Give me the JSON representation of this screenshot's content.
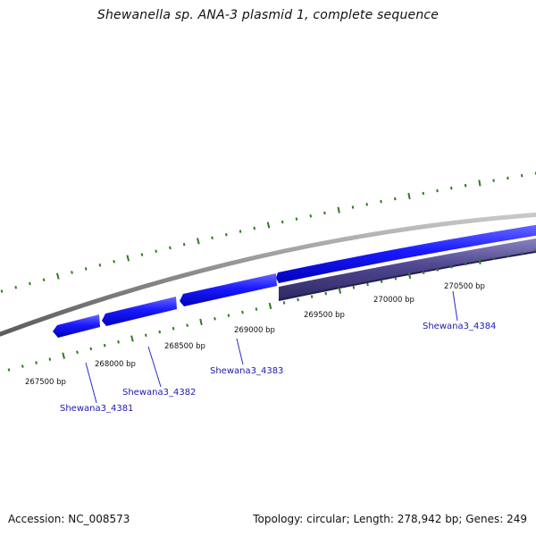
{
  "title": "Shewanella sp. ANA-3 plasmid 1, complete sequence",
  "footer": {
    "accession_label": "Accession:",
    "accession": "NC_008573",
    "topology_label": "Topology:",
    "topology": "circular",
    "length_label": "Length:",
    "length": "278,942 bp",
    "genes_label": "Genes:",
    "genes": "249"
  },
  "colors": {
    "backbone": "#8a8a8a",
    "gene_forward": "#1a1aff",
    "gene_reverse": "#4f478f",
    "tick": "#2e7d1f",
    "gene_label": "#1a1ab0",
    "text": "#111111"
  },
  "position_labels": [
    "267500 bp",
    "268000 bp",
    "268500 bp",
    "269000 bp",
    "269500 bp",
    "270000 bp",
    "270500 bp"
  ],
  "genes": [
    {
      "name": "Shewana3_4381",
      "strand": "forward"
    },
    {
      "name": "Shewana3_4382",
      "strand": "forward"
    },
    {
      "name": "Shewana3_4383",
      "strand": "forward"
    },
    {
      "name": "Shewana3_4384",
      "strand": "forward"
    },
    {
      "name": "",
      "strand": "reverse"
    }
  ]
}
